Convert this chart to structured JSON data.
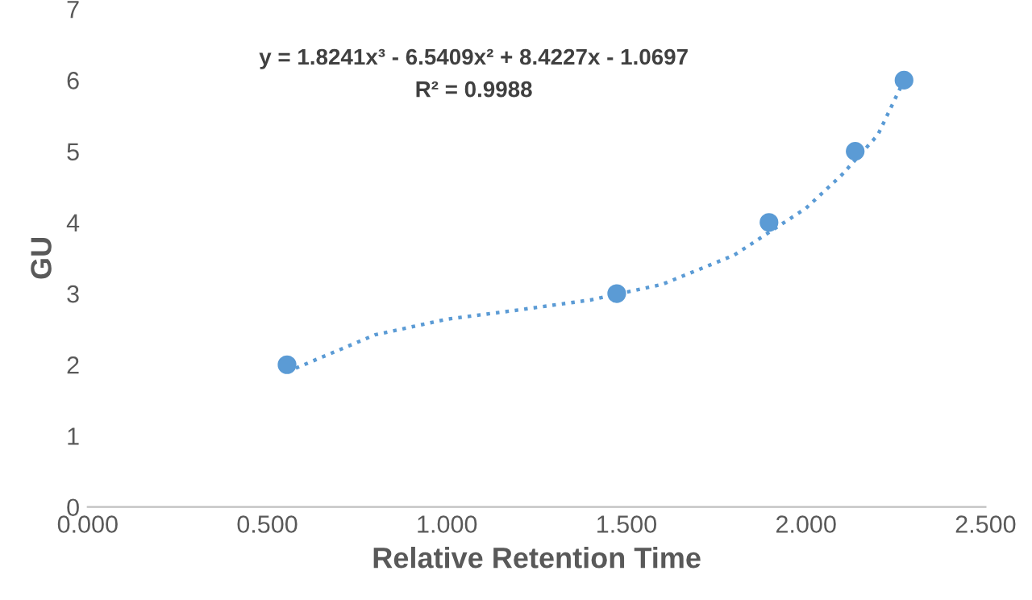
{
  "chart_data": {
    "type": "scatter",
    "xlabel": "Relative Retention Time",
    "ylabel": "GU",
    "series": [
      {
        "color": "#5b9bd5",
        "marker": "circle",
        "x": [
          0.555,
          1.473,
          1.897,
          2.137,
          2.273
        ],
        "values": [
          2,
          3,
          4,
          5,
          6
        ]
      },
      {
        "type": "line",
        "color": "#5b9bd5",
        "line_style": "dotted",
        "x": [
          0.555,
          0.8,
          1.0,
          1.2,
          1.4,
          1.6,
          1.8,
          2.0,
          2.1,
          2.2,
          2.273
        ],
        "values": [
          1.9,
          2.42,
          2.64,
          2.77,
          2.91,
          3.13,
          3.54,
          4.2,
          4.67,
          5.23,
          6.0
        ]
      }
    ],
    "annotations": [
      "y = 1.8241x³ - 6.5409x² + 8.4227x - 1.0697",
      "R² = 0.9988"
    ],
    "xlim": [
      0,
      2.5
    ],
    "xticks": [
      {
        "value": 0,
        "label": "0.000"
      },
      {
        "value": 0.5,
        "label": "0.500"
      },
      {
        "value": 1,
        "label": "1.000"
      },
      {
        "value": 1.5,
        "label": "1.500"
      },
      {
        "value": 2,
        "label": "2.000"
      },
      {
        "value": 2.5,
        "label": "2.500"
      }
    ],
    "ylim": [
      0,
      7
    ],
    "yticks": [
      0,
      1,
      2,
      3,
      4,
      5,
      6,
      7
    ],
    "grid": false
  }
}
